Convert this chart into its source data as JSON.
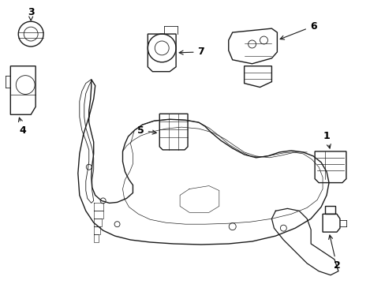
{
  "bg_color": "#ffffff",
  "line_color": "#1a1a1a",
  "label_color": "#000000",
  "font_size_labels": 9,
  "lw_main": 1.0,
  "lw_thin": 0.6
}
